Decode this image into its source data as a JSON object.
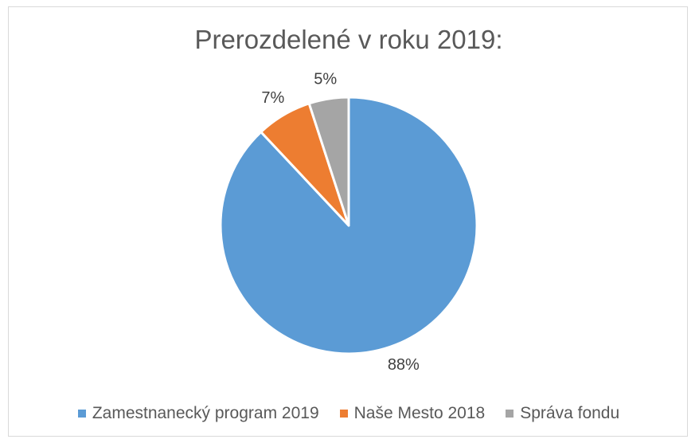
{
  "chart_data": {
    "type": "pie",
    "title": "Prerozdelené v roku 2019:",
    "slices": [
      {
        "name": "Zamestnanecký program 2019",
        "value": 88,
        "label": "88%",
        "color": "#5b9bd5"
      },
      {
        "name": "Naše Mesto 2018",
        "value": 7,
        "label": "7%",
        "color": "#ed7d31"
      },
      {
        "name": "Správa fondu",
        "value": 5,
        "label": "5%",
        "color": "#a5a5a5"
      }
    ],
    "legend_position": "bottom"
  }
}
